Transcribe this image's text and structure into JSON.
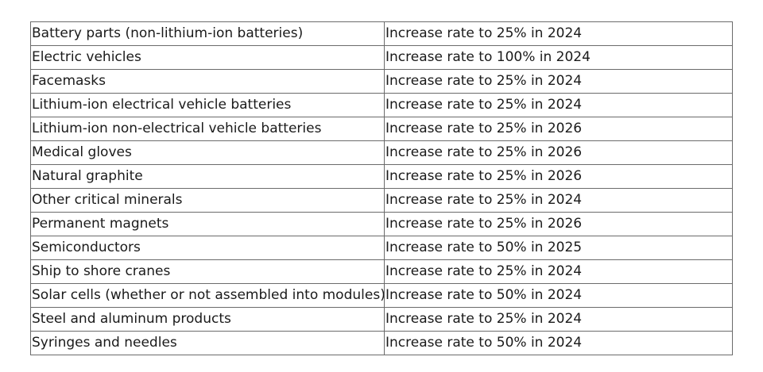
{
  "table": {
    "rows": [
      {
        "product": "Battery parts (non-lithium-ion batteries)",
        "action": "Increase rate to 25% in 2024"
      },
      {
        "product": "Electric vehicles",
        "action": "Increase rate to 100% in 2024"
      },
      {
        "product": "Facemasks",
        "action": "Increase rate to 25% in 2024"
      },
      {
        "product": "Lithium-ion electrical vehicle batteries",
        "action": "Increase rate to 25% in 2024"
      },
      {
        "product": "Lithium-ion non-electrical vehicle batteries",
        "action": "Increase rate to 25% in 2026"
      },
      {
        "product": "Medical gloves",
        "action": "Increase rate to 25% in 2026"
      },
      {
        "product": "Natural graphite",
        "action": "Increase rate to 25% in 2026"
      },
      {
        "product": "Other critical minerals",
        "action": "Increase rate to 25% in 2024"
      },
      {
        "product": "Permanent magnets",
        "action": "Increase rate to 25% in 2026"
      },
      {
        "product": "Semiconductors",
        "action": "Increase rate to 50% in 2025"
      },
      {
        "product": "Ship to shore cranes",
        "action": "Increase rate to 25% in 2024"
      },
      {
        "product": "Solar cells (whether or not assembled into modules)",
        "action": "Increase rate to 50% in 2024"
      },
      {
        "product": "Steel and aluminum products",
        "action": "Increase rate to 25% in 2024"
      },
      {
        "product": "Syringes and needles",
        "action": "Increase rate to 50% in 2024"
      }
    ]
  }
}
